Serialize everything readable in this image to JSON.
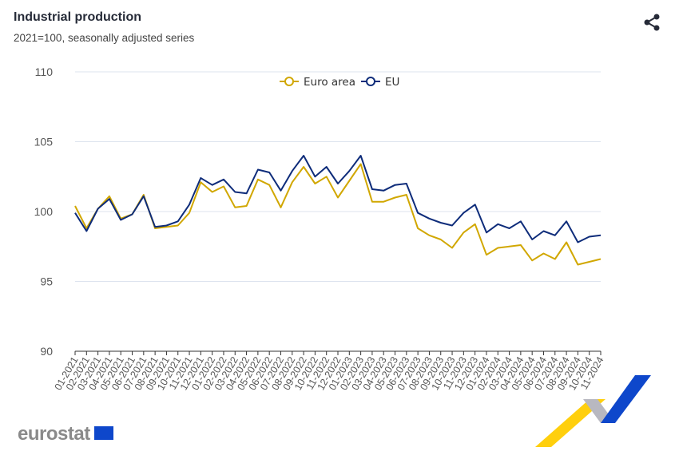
{
  "header": {
    "title": "Industrial production",
    "subtitle": "2021=100, seasonally adjusted series",
    "share_icon": "share-icon"
  },
  "footer": {
    "logo_text": "eurostat"
  },
  "chart_data": {
    "type": "line",
    "title": "Industrial production",
    "subtitle": "2021=100, seasonally adjusted series",
    "xlabel": "",
    "ylabel": "",
    "ylim": [
      90,
      110
    ],
    "yticks": [
      "90",
      "95",
      "100",
      "105",
      "110"
    ],
    "grid": true,
    "legend_position": "top-center",
    "categories": [
      "01-2021",
      "02-2021",
      "03-2021",
      "04-2021",
      "05-2021",
      "06-2021",
      "07-2021",
      "08-2021",
      "09-2021",
      "10-2021",
      "11-2021",
      "12-2021",
      "01-2022",
      "02-2022",
      "03-2022",
      "04-2022",
      "05-2022",
      "06-2022",
      "07-2022",
      "08-2022",
      "09-2022",
      "10-2022",
      "11-2022",
      "12-2022",
      "01-2023",
      "02-2023",
      "03-2023",
      "04-2023",
      "05-2023",
      "06-2023",
      "07-2023",
      "08-2023",
      "09-2023",
      "10-2023",
      "11-2023",
      "12-2023",
      "01-2024",
      "02-2024",
      "03-2024",
      "04-2024",
      "05-2024",
      "06-2024",
      "07-2024",
      "08-2024",
      "09-2024",
      "10-2024",
      "11-2024"
    ],
    "series": [
      {
        "name": "Euro area",
        "color": "#d1a700",
        "values": [
          100.4,
          98.8,
          100.2,
          101.1,
          99.5,
          99.8,
          101.2,
          98.8,
          98.9,
          99.0,
          99.9,
          102.1,
          101.4,
          101.8,
          100.3,
          100.4,
          102.3,
          101.9,
          100.3,
          102.1,
          103.2,
          102.0,
          102.5,
          101.0,
          102.2,
          103.4,
          100.7,
          100.7,
          101.0,
          101.2,
          98.8,
          98.3,
          98.0,
          97.4,
          98.5,
          99.1,
          96.9,
          97.4,
          97.5,
          97.6,
          96.5,
          97.0,
          96.6,
          97.8,
          96.2,
          96.4,
          96.6
        ]
      },
      {
        "name": "EU",
        "color": "#0e2c7a",
        "values": [
          99.9,
          98.6,
          100.2,
          100.9,
          99.4,
          99.8,
          101.1,
          98.9,
          99.0,
          99.3,
          100.5,
          102.4,
          101.9,
          102.3,
          101.4,
          101.3,
          103.0,
          102.8,
          101.5,
          102.9,
          104.0,
          102.5,
          103.2,
          102.0,
          102.9,
          104.0,
          101.6,
          101.5,
          101.9,
          102.0,
          99.9,
          99.5,
          99.2,
          99.0,
          99.9,
          100.5,
          98.5,
          99.1,
          98.8,
          99.3,
          98.0,
          98.6,
          98.3,
          99.3,
          97.8,
          98.2,
          98.3
        ]
      }
    ]
  }
}
